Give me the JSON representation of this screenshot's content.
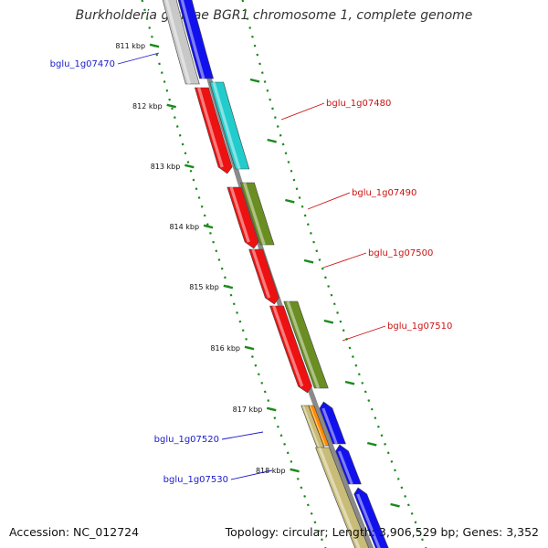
{
  "title": "Burkholderia glumae BGR1 chromosome 1, complete genome",
  "footer": {
    "accession": "Accession: NC_012724",
    "summary": "Topology: circular; Length: 3,906,529 bp; Genes: 3,352"
  },
  "ticks": [
    "811 kbp",
    "812 kbp",
    "813 kbp",
    "814 kbp",
    "815 kbp",
    "816 kbp",
    "817 kbp",
    "818 kbp"
  ],
  "colors": {
    "backbone": "#8a8a8a",
    "ruler": "#1a8a1a",
    "blue": "#1111ee",
    "red": "#ee1111",
    "cyan": "#22cccc",
    "olive": "#6b8e23",
    "grey": "#c8c8c8",
    "orange": "#ff8c00",
    "khaki": "#c8bc78",
    "label_blue": "#1a1acc",
    "label_red": "#cc1111"
  },
  "genes": [
    {
      "label": "bglu_1g07470",
      "side": "left",
      "color": "label_blue"
    },
    {
      "label": "bglu_1g07480",
      "side": "right",
      "color": "label_red"
    },
    {
      "label": "bglu_1g07490",
      "side": "right",
      "color": "label_red"
    },
    {
      "label": "bglu_1g07500",
      "side": "right",
      "color": "label_red"
    },
    {
      "label": "bglu_1g07510",
      "side": "right",
      "color": "label_red"
    },
    {
      "label": "bglu_1g07520",
      "side": "left",
      "color": "label_blue"
    },
    {
      "label": "bglu_1g07530",
      "side": "left",
      "color": "label_blue"
    }
  ]
}
